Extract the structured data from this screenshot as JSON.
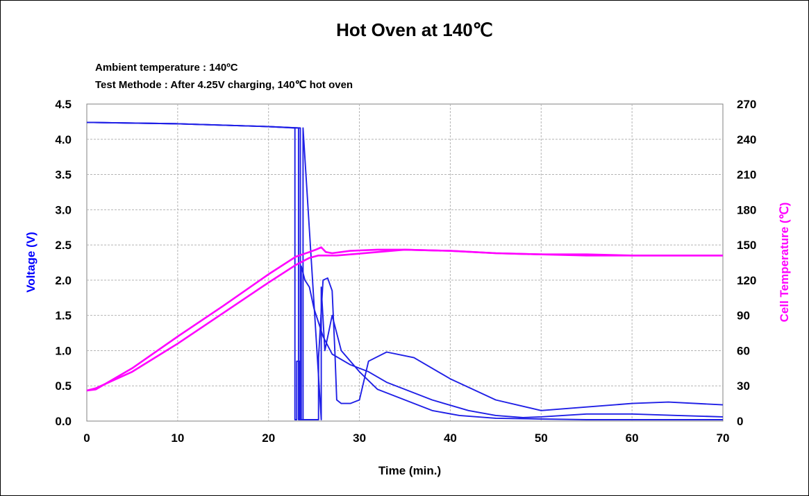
{
  "chart_data": {
    "type": "line",
    "title": "Hot Oven at 140℃",
    "annotations": [
      "Ambient temperature  : 140ºC",
      "Test Methode  : After 4.25V charging, 140℃  hot oven"
    ],
    "xlabel": "Time (min.)",
    "ylabel": "Voltage (V)",
    "y2label": "Cell Temperature (℃)",
    "xlim": [
      0,
      70
    ],
    "ylim": [
      0,
      4.5
    ],
    "y2lim": [
      0,
      270
    ],
    "xticks": [
      "0",
      "10",
      "20",
      "30",
      "40",
      "50",
      "60",
      "70"
    ],
    "yticks": [
      "0.0",
      "0.5",
      "1.0",
      "1.5",
      "2.0",
      "2.5",
      "3.0",
      "3.5",
      "4.0",
      "4.5"
    ],
    "y2ticks": [
      "0",
      "30",
      "60",
      "90",
      "120",
      "150",
      "180",
      "210",
      "240",
      "270"
    ],
    "grid": true,
    "colors": {
      "voltage": "#1f1fe6",
      "temperature": "#ff00ff",
      "axis_voltage": "#0000ff",
      "axis_temperature": "#ff00ff"
    },
    "series": [
      {
        "axis": "left",
        "color": "#1f1fe6",
        "x": [
          0,
          10,
          20,
          23.5,
          23.5,
          23.6,
          23.6,
          24,
          24.5,
          25,
          26,
          27,
          29,
          31,
          33,
          35,
          38,
          42,
          45,
          48,
          50,
          55,
          60,
          65,
          70
        ],
        "y": [
          4.24,
          4.22,
          4.18,
          4.16,
          0.02,
          0.02,
          2.2,
          2.0,
          1.9,
          1.6,
          1.2,
          0.95,
          0.8,
          0.7,
          0.55,
          0.45,
          0.3,
          0.15,
          0.08,
          0.05,
          0.06,
          0.1,
          0.1,
          0.08,
          0.06
        ]
      },
      {
        "axis": "left",
        "color": "#1f1fe6",
        "x": [
          0,
          10,
          20,
          22.9,
          22.9,
          23.1,
          23.1,
          23.4,
          23.4,
          24.5,
          25.5,
          25.5,
          26,
          26.5,
          27,
          27.3,
          27.5,
          28,
          29,
          30,
          31,
          33,
          36,
          40,
          45,
          50,
          55,
          60,
          64,
          70
        ],
        "y": [
          4.24,
          4.22,
          4.18,
          4.16,
          0.02,
          0.02,
          0.85,
          0.85,
          0.02,
          0.02,
          0.02,
          0.9,
          2.0,
          2.03,
          1.85,
          1.0,
          0.3,
          0.25,
          0.25,
          0.3,
          0.85,
          0.98,
          0.9,
          0.6,
          0.3,
          0.15,
          0.2,
          0.25,
          0.27,
          0.23
        ]
      },
      {
        "axis": "left",
        "color": "#1f1fe6",
        "x": [
          0,
          10,
          20,
          23.3,
          23.3,
          23.8,
          23.8,
          25.8,
          25.8,
          26.2,
          27,
          28,
          30,
          32,
          35,
          38,
          41,
          45,
          50,
          55,
          60,
          70
        ],
        "y": [
          4.24,
          4.22,
          4.18,
          4.16,
          0.02,
          0.02,
          4.16,
          0.02,
          1.9,
          1.0,
          1.5,
          1.0,
          0.7,
          0.45,
          0.3,
          0.15,
          0.08,
          0.04,
          0.03,
          0.02,
          0.02,
          0.02
        ]
      },
      {
        "axis": "right",
        "color": "#ff00ff",
        "x": [
          0,
          1,
          5,
          10,
          15,
          20,
          23,
          24.5,
          25.2,
          25.8,
          26.3,
          27,
          29,
          32,
          35,
          40,
          45,
          50,
          55,
          60,
          65,
          70
        ],
        "y": [
          26,
          27,
          45,
          72,
          98,
          125,
          140,
          144,
          146,
          148,
          144,
          143,
          145,
          146,
          146,
          145,
          143,
          142,
          142,
          141,
          141,
          141
        ]
      },
      {
        "axis": "right",
        "color": "#ff00ff",
        "x": [
          0,
          1,
          5,
          10,
          15,
          20,
          23,
          24.5,
          25.5,
          26.5,
          27.5,
          29,
          32,
          35,
          40,
          45,
          50,
          55,
          60,
          65,
          70
        ],
        "y": [
          26,
          28,
          42,
          66,
          92,
          118,
          133,
          139,
          141,
          141,
          141,
          142,
          144,
          146,
          145,
          143,
          142,
          141,
          141,
          141,
          141
        ]
      }
    ]
  }
}
